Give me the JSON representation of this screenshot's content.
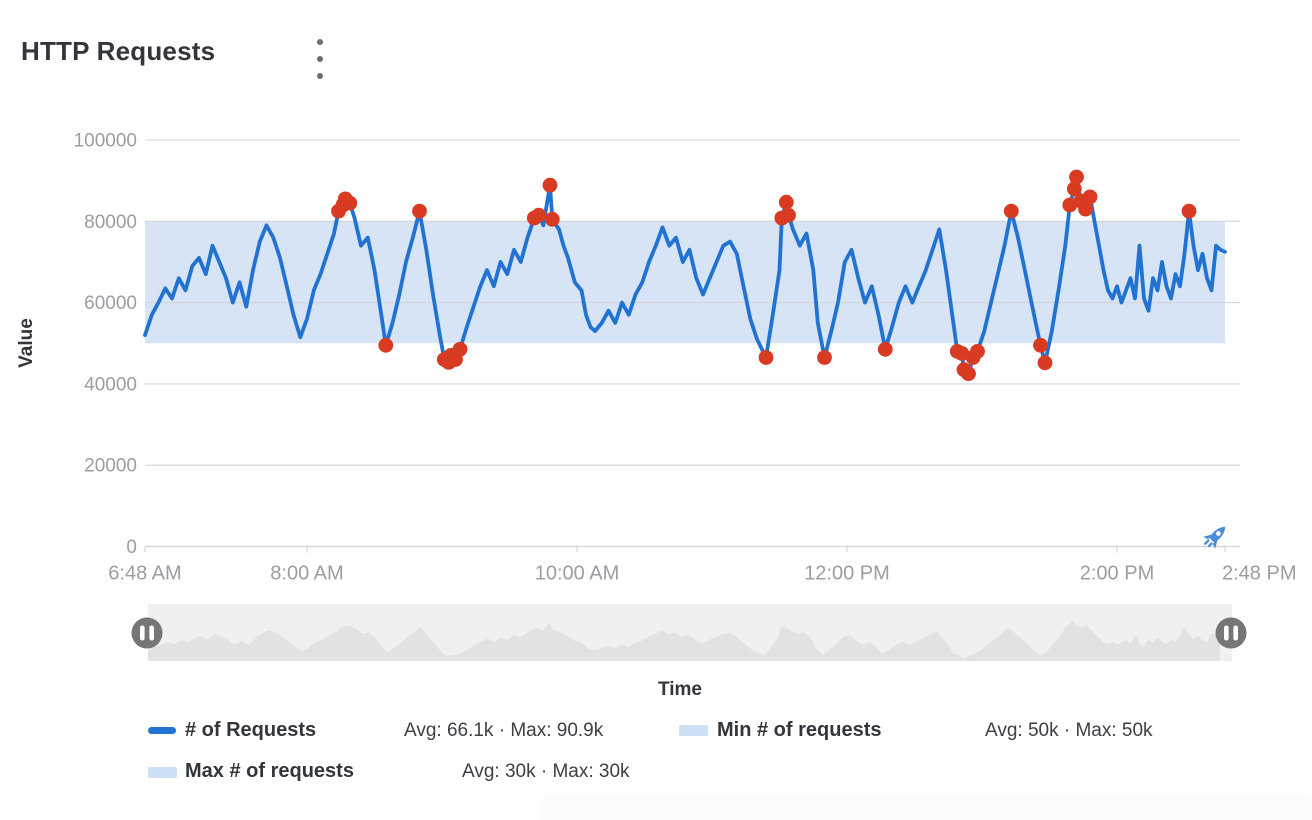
{
  "header": {
    "title": "HTTP Requests",
    "menu_icon": "kebab-vertical"
  },
  "colors": {
    "accent_line": "#2273d1",
    "anomaly_red": "#d93b22",
    "band_blue": "#d6e4f6",
    "legend_band_swatch": "#cddff4",
    "grid_gray": "#d2d5d9",
    "axis_text": "#9a9da2",
    "brush_bg": "#f0f0f0",
    "brush_area": "#e2e2e2",
    "handle_gray": "#767676",
    "rocket_blue": "#4a8ed9"
  },
  "chart_data": {
    "type": "line",
    "title": "HTTP Requests",
    "xlabel": "Time",
    "ylabel": "Value",
    "x_axis": {
      "range_minutes": [
        0,
        480
      ],
      "ticks": [
        {
          "minute": 0,
          "label": "6:48 AM"
        },
        {
          "minute": 72,
          "label": "8:00 AM"
        },
        {
          "minute": 192,
          "label": "10:00 AM"
        },
        {
          "minute": 312,
          "label": "12:00 PM"
        },
        {
          "minute": 432,
          "label": "2:00 PM"
        },
        {
          "minute": 480,
          "label": "2:48 PM"
        }
      ]
    },
    "y_axis": {
      "min": 0,
      "max": 100000,
      "ticks": [
        {
          "value": 100000,
          "label": "100000"
        },
        {
          "value": 80000,
          "label": "80000"
        },
        {
          "value": 60000,
          "label": "60000"
        },
        {
          "value": 40000,
          "label": "40000"
        },
        {
          "value": 20000,
          "label": "20000"
        },
        {
          "value": 0,
          "label": "0"
        }
      ]
    },
    "band": {
      "name": "expected-range-band",
      "from": 50000,
      "to": 80000
    },
    "bounds_series": [
      {
        "name": "Min # of requests",
        "avg": "50k",
        "max": "50k",
        "base_value": 50000
      },
      {
        "name": "Max # of requests",
        "avg": "30k",
        "max": "30k",
        "band_height": 30000
      }
    ],
    "series": [
      {
        "name": "# of Requests",
        "avg": "66.1k",
        "max": "90.9k",
        "points": [
          [
            0,
            52000
          ],
          [
            3,
            57000
          ],
          [
            6,
            60000
          ],
          [
            9,
            63500
          ],
          [
            12,
            61000
          ],
          [
            15,
            66000
          ],
          [
            18,
            63000
          ],
          [
            21,
            69000
          ],
          [
            24,
            71000
          ],
          [
            27,
            67000
          ],
          [
            30,
            74000
          ],
          [
            33,
            70000
          ],
          [
            36,
            66000
          ],
          [
            39,
            60000
          ],
          [
            42,
            65000
          ],
          [
            45,
            59000
          ],
          [
            48,
            68000
          ],
          [
            51,
            75000
          ],
          [
            54,
            79000
          ],
          [
            57,
            76000
          ],
          [
            60,
            71000
          ],
          [
            63,
            64000
          ],
          [
            66,
            57000
          ],
          [
            69,
            51500
          ],
          [
            72,
            56000
          ],
          [
            75,
            63000
          ],
          [
            78,
            67000
          ],
          [
            81,
            72000
          ],
          [
            84,
            77000
          ],
          [
            86,
            82500
          ],
          [
            88,
            84000
          ],
          [
            89,
            85500
          ],
          [
            91,
            84500
          ],
          [
            93,
            81000
          ],
          [
            96,
            74000
          ],
          [
            99,
            76000
          ],
          [
            102,
            68000
          ],
          [
            105,
            57000
          ],
          [
            107,
            49500
          ],
          [
            110,
            55000
          ],
          [
            113,
            62000
          ],
          [
            116,
            70000
          ],
          [
            119,
            76000
          ],
          [
            122,
            82500
          ],
          [
            125,
            73000
          ],
          [
            128,
            62000
          ],
          [
            131,
            52000
          ],
          [
            133,
            46000
          ],
          [
            135,
            45300
          ],
          [
            136,
            47000
          ],
          [
            138,
            46000
          ],
          [
            140,
            48500
          ],
          [
            143,
            54000
          ],
          [
            146,
            59000
          ],
          [
            149,
            64000
          ],
          [
            152,
            68000
          ],
          [
            155,
            64000
          ],
          [
            158,
            70000
          ],
          [
            161,
            67000
          ],
          [
            164,
            73000
          ],
          [
            167,
            70000
          ],
          [
            170,
            76000
          ],
          [
            173,
            80800
          ],
          [
            175,
            81500
          ],
          [
            177,
            79000
          ],
          [
            180,
            88900
          ],
          [
            181,
            80500
          ],
          [
            184,
            78000
          ],
          [
            186,
            74000
          ],
          [
            188,
            71000
          ],
          [
            191,
            65000
          ],
          [
            194,
            63000
          ],
          [
            196,
            57000
          ],
          [
            198,
            54000
          ],
          [
            200,
            53000
          ],
          [
            203,
            55000
          ],
          [
            206,
            58000
          ],
          [
            209,
            55000
          ],
          [
            212,
            60000
          ],
          [
            215,
            57000
          ],
          [
            218,
            62000
          ],
          [
            221,
            65000
          ],
          [
            224,
            70000
          ],
          [
            227,
            74000
          ],
          [
            230,
            78500
          ],
          [
            233,
            74000
          ],
          [
            236,
            76000
          ],
          [
            239,
            70000
          ],
          [
            242,
            73000
          ],
          [
            245,
            66000
          ],
          [
            248,
            62000
          ],
          [
            251,
            66000
          ],
          [
            254,
            70000
          ],
          [
            257,
            74000
          ],
          [
            260,
            75000
          ],
          [
            263,
            72000
          ],
          [
            266,
            64000
          ],
          [
            269,
            56000
          ],
          [
            272,
            51000
          ],
          [
            276,
            46500
          ],
          [
            279,
            57000
          ],
          [
            282,
            68000
          ],
          [
            283,
            80800
          ],
          [
            285,
            84700
          ],
          [
            286,
            81500
          ],
          [
            288,
            78000
          ],
          [
            291,
            74000
          ],
          [
            294,
            77000
          ],
          [
            297,
            68000
          ],
          [
            299,
            55000
          ],
          [
            302,
            46500
          ],
          [
            305,
            53000
          ],
          [
            308,
            60000
          ],
          [
            311,
            70000
          ],
          [
            314,
            73000
          ],
          [
            317,
            66000
          ],
          [
            320,
            60000
          ],
          [
            323,
            64000
          ],
          [
            326,
            57000
          ],
          [
            329,
            48500
          ],
          [
            332,
            54000
          ],
          [
            335,
            60000
          ],
          [
            338,
            64000
          ],
          [
            341,
            60000
          ],
          [
            344,
            64000
          ],
          [
            347,
            68000
          ],
          [
            350,
            73000
          ],
          [
            353,
            78000
          ],
          [
            356,
            68000
          ],
          [
            359,
            56000
          ],
          [
            361,
            48000
          ],
          [
            363,
            47500
          ],
          [
            364,
            43500
          ],
          [
            366,
            42500
          ],
          [
            368,
            46500
          ],
          [
            370,
            48000
          ],
          [
            373,
            53000
          ],
          [
            376,
            60000
          ],
          [
            379,
            67000
          ],
          [
            382,
            74000
          ],
          [
            385,
            82500
          ],
          [
            388,
            76000
          ],
          [
            391,
            68000
          ],
          [
            394,
            60000
          ],
          [
            397,
            52000
          ],
          [
            398,
            49500
          ],
          [
            400,
            45200
          ],
          [
            403,
            53000
          ],
          [
            406,
            63000
          ],
          [
            409,
            74000
          ],
          [
            411,
            84000
          ],
          [
            413,
            88000
          ],
          [
            414,
            90900
          ],
          [
            416,
            85000
          ],
          [
            418,
            83000
          ],
          [
            420,
            86000
          ],
          [
            422,
            80000
          ],
          [
            424,
            74000
          ],
          [
            426,
            68000
          ],
          [
            428,
            63000
          ],
          [
            430,
            61000
          ],
          [
            432,
            64000
          ],
          [
            434,
            60000
          ],
          [
            436,
            63000
          ],
          [
            438,
            66000
          ],
          [
            440,
            61000
          ],
          [
            442,
            74000
          ],
          [
            444,
            61000
          ],
          [
            446,
            58000
          ],
          [
            448,
            66000
          ],
          [
            450,
            63000
          ],
          [
            452,
            70000
          ],
          [
            454,
            64000
          ],
          [
            456,
            61000
          ],
          [
            458,
            67000
          ],
          [
            460,
            64000
          ],
          [
            462,
            72000
          ],
          [
            464,
            82500
          ],
          [
            466,
            74000
          ],
          [
            468,
            68000
          ],
          [
            470,
            72000
          ],
          [
            472,
            66000
          ],
          [
            474,
            63000
          ],
          [
            476,
            74000
          ],
          [
            478,
            73000
          ],
          [
            480,
            72500
          ]
        ]
      }
    ],
    "anomalies": {
      "name": "anomaly-markers",
      "points": [
        [
          86,
          82500
        ],
        [
          88,
          84000
        ],
        [
          89,
          85500
        ],
        [
          91,
          84500
        ],
        [
          107,
          49500
        ],
        [
          122,
          82500
        ],
        [
          133,
          46000
        ],
        [
          135,
          45300
        ],
        [
          136,
          47000
        ],
        [
          138,
          46000
        ],
        [
          140,
          48500
        ],
        [
          173,
          80800
        ],
        [
          175,
          81500
        ],
        [
          180,
          88900
        ],
        [
          181,
          80500
        ],
        [
          276,
          46500
        ],
        [
          283,
          80800
        ],
        [
          285,
          84700
        ],
        [
          286,
          81500
        ],
        [
          302,
          46500
        ],
        [
          329,
          48500
        ],
        [
          361,
          48000
        ],
        [
          363,
          47500
        ],
        [
          364,
          43500
        ],
        [
          366,
          42500
        ],
        [
          368,
          46500
        ],
        [
          370,
          48000
        ],
        [
          385,
          82500
        ],
        [
          398,
          49500
        ],
        [
          400,
          45200
        ],
        [
          411,
          84000
        ],
        [
          413,
          88000
        ],
        [
          414,
          90900
        ],
        [
          416,
          85000
        ],
        [
          418,
          83000
        ],
        [
          420,
          86000
        ],
        [
          464,
          82500
        ]
      ]
    }
  },
  "legend": {
    "items": [
      {
        "name": "# of Requests",
        "stats": "Avg: 66.1k · Max: 90.9k",
        "swatch": "blue-line"
      },
      {
        "name": "Min # of requests",
        "stats": "Avg: 50k · Max: 50k",
        "swatch": "light-blue-band"
      },
      {
        "name": "Max # of requests",
        "stats": "Avg: 30k · Max: 30k",
        "swatch": "light-blue-band"
      }
    ]
  },
  "brush": {
    "left_handle": "pause-icon",
    "right_handle": "pause-icon",
    "minimap": "series-overview"
  }
}
